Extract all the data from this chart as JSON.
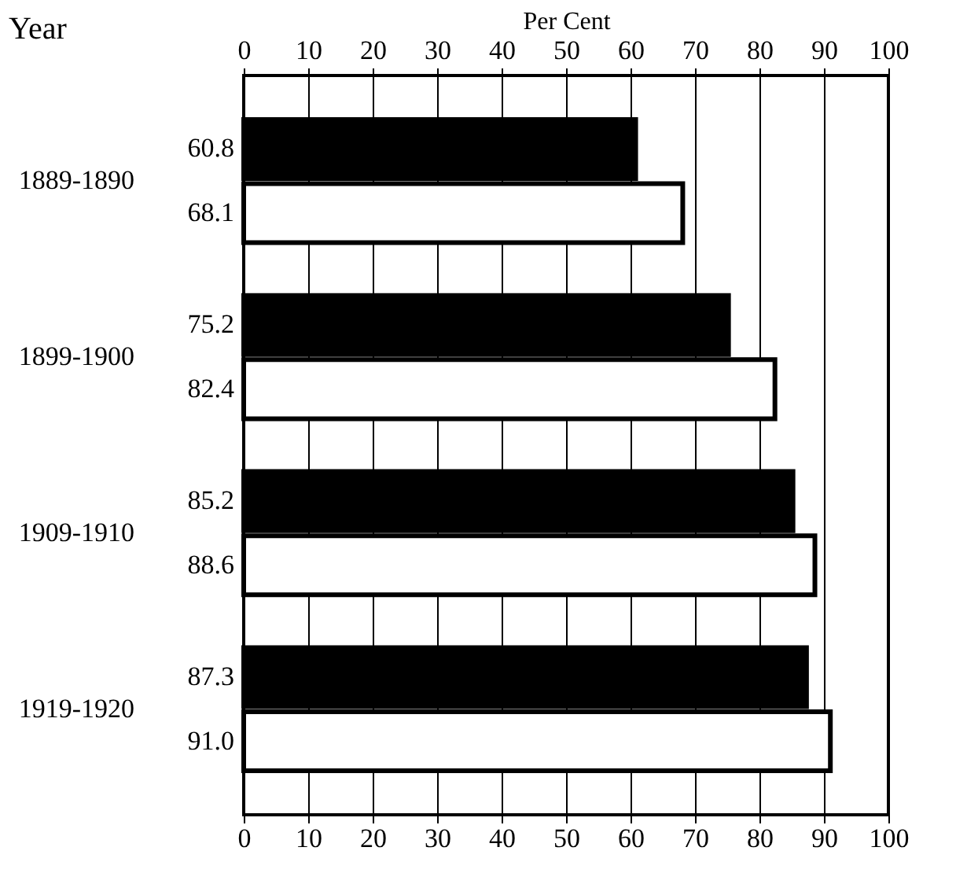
{
  "chart_data": {
    "type": "bar",
    "orientation": "horizontal",
    "ylabel": "Year",
    "x2label": "Per Cent",
    "categories": [
      "1889-1890",
      "1899-1900",
      "1909-1910",
      "1919-1920"
    ],
    "series": [
      {
        "color": "#000000",
        "values": [
          60.8,
          75.2,
          85.2,
          87.3
        ],
        "value_labels": [
          "60.8",
          "75.2",
          "85.2",
          "87.3"
        ]
      },
      {
        "color": "#ffffff",
        "values": [
          68.1,
          82.4,
          88.6,
          91.0
        ],
        "value_labels": [
          "68.1",
          "82.4",
          "88.6",
          "91.0"
        ]
      }
    ],
    "xlim": [
      0,
      100
    ],
    "xticks": [
      0,
      10,
      20,
      30,
      40,
      50,
      60,
      70,
      80,
      90,
      100
    ],
    "x2lim": [
      0,
      100
    ],
    "x2ticks": [
      0,
      10,
      20,
      30,
      40,
      50,
      60,
      70,
      80,
      90,
      100
    ],
    "grid": "x",
    "legend": false
  }
}
